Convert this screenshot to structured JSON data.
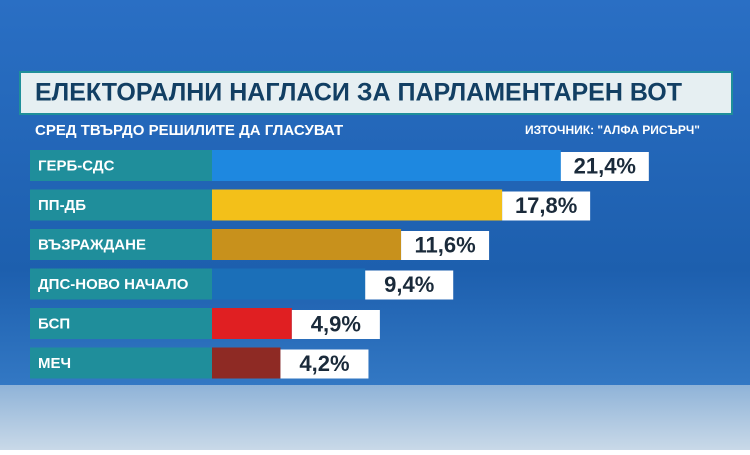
{
  "chart_data": {
    "type": "bar",
    "title": "ЕЛЕКТОРАЛНИ НАГЛАСИ ЗА ПАРЛАМЕНТАРЕН ВОТ",
    "subtitle": "СРЕД ТВЪРДО РЕШИЛИТЕ ДА ГЛАСУВАТ",
    "source": "ИЗТОЧНИК: \"АЛФА РИСЪРЧ\"",
    "categories": [
      "ГЕРБ-СДС",
      "ПП-ДБ",
      "ВЪЗРАЖДАНЕ",
      "ДПС-НОВО НАЧАЛО",
      "БСП",
      "МЕЧ"
    ],
    "values": [
      21.4,
      17.8,
      11.6,
      9.4,
      4.9,
      4.2
    ],
    "value_labels": [
      "21,4%",
      "17,8%",
      "11,6%",
      "9,4%",
      "4,9%",
      "4,2%"
    ],
    "colors": [
      "#1e88e0",
      "#f3c019",
      "#c8911c",
      "#1b6fb8",
      "#e01f22",
      "#8e2a24"
    ]
  }
}
